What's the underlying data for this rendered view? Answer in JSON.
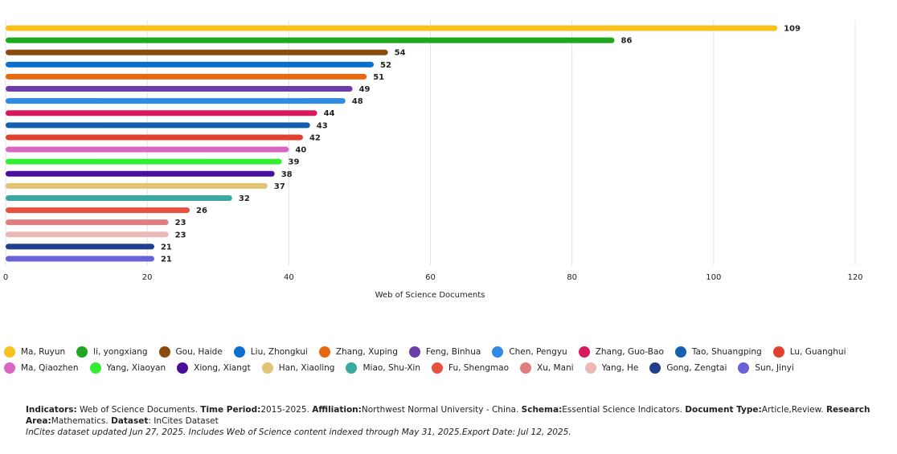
{
  "chart_data": {
    "type": "bar",
    "orientation": "horizontal",
    "x_label": "Web of Science Documents",
    "categories": [
      "Ma, Ruyun",
      "li, yongxiang",
      "Gou, Haide",
      "Liu, Zhongkui",
      "Zhang, Xuping",
      "Feng, Binhua",
      "Chen, Pengyu",
      "Zhang, Guo-Bao",
      "Tao, Shuangping",
      "Lu, Guanghui",
      "Ma, Qiaozhen",
      "Yang, Xiaoyan",
      "Xiong, Xiangt",
      "Han, Xiaoling",
      "Miao, Shu-Xin",
      "Fu, Shengmao",
      "Xu, Mani",
      "Yang, He",
      "Gong, Zengtai",
      "Sun, Jinyi"
    ],
    "values": [
      109,
      86,
      54,
      52,
      51,
      49,
      48,
      44,
      43,
      42,
      40,
      39,
      38,
      37,
      32,
      26,
      23,
      23,
      21,
      21
    ],
    "colors": [
      "#f7c21c",
      "#1fa81f",
      "#8a4b0c",
      "#0b6fd0",
      "#e8690d",
      "#6a3ea8",
      "#2f8ae6",
      "#d61a5b",
      "#1560ae",
      "#e2402e",
      "#d966c4",
      "#34ec34",
      "#4a0e9c",
      "#e3c374",
      "#3aa99f",
      "#e8503f",
      "#e07d7d",
      "#eab9b6",
      "#1f3f8e",
      "#6a60d8"
    ],
    "xlim": [
      0,
      120
    ],
    "xticks": [
      0,
      20,
      40,
      60,
      80,
      100,
      120
    ],
    "grid": true,
    "legend": "bottom"
  },
  "footer": {
    "items": [
      {
        "label": "Indicators:",
        "text": " Web of Science Documents."
      },
      {
        "label": "Time Period:",
        "text": "2015-2025."
      },
      {
        "label": "Affiliation:",
        "text": "Northwest Normal University - China."
      },
      {
        "label": "Schema:",
        "text": "Essential Science Indicators."
      },
      {
        "label": "Document Type:",
        "text": "Article,Review."
      },
      {
        "label": "Research Area:",
        "text": "Mathematics."
      },
      {
        "label": "Dataset",
        "text": ": InCites Dataset"
      }
    ],
    "note": "InCites dataset updated Jun 27, 2025. Includes Web of Science content indexed through May 31, 2025.Export Date: Jul 12, 2025."
  }
}
